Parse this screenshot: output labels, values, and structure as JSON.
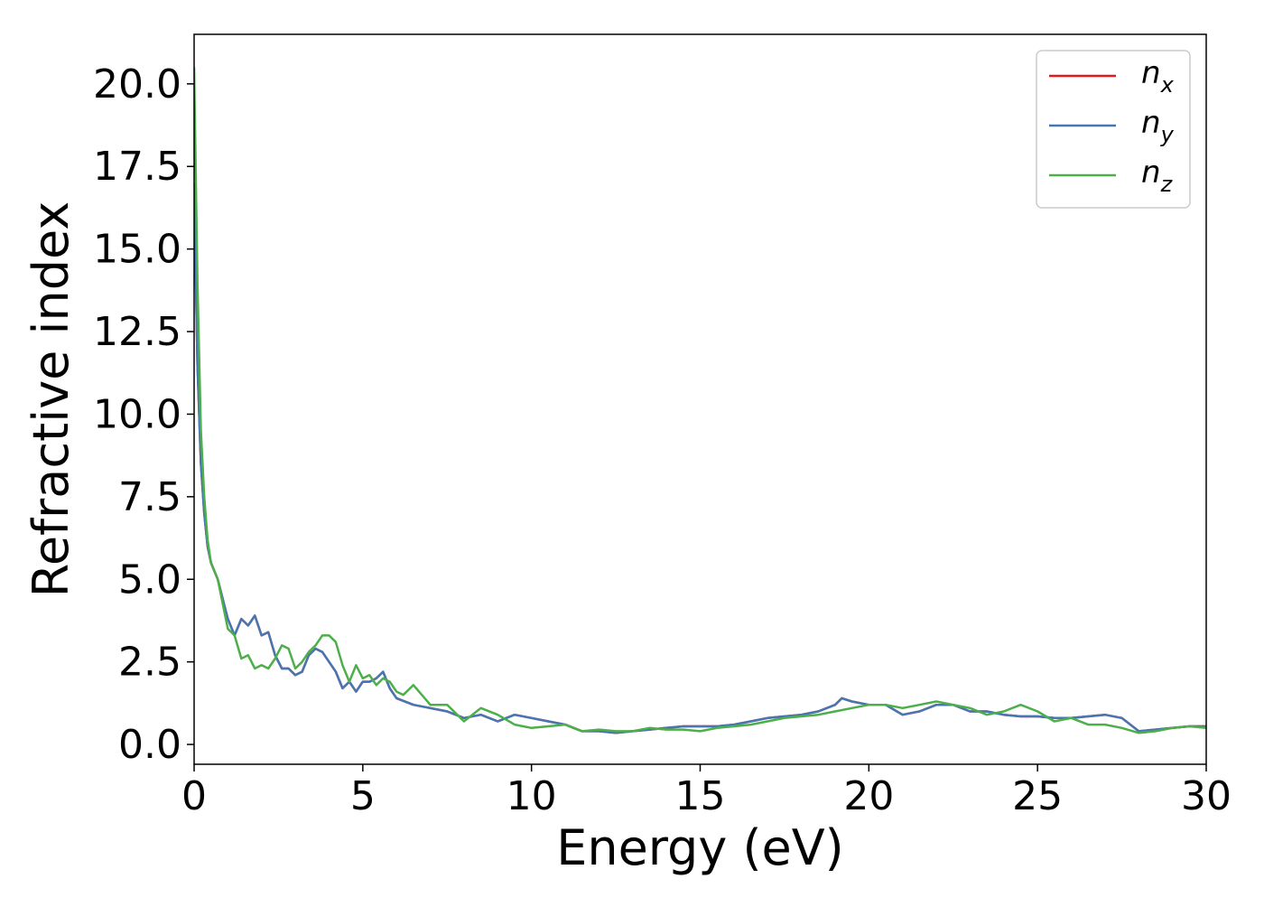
{
  "chart_data": {
    "type": "line",
    "title": "",
    "xlabel": "Energy (eV)",
    "ylabel": "Refractive index",
    "xlim": [
      0,
      30
    ],
    "ylim": [
      -0.6,
      21.5
    ],
    "xticks": [
      0,
      5,
      10,
      15,
      20,
      25,
      30
    ],
    "xtick_labels": [
      "0",
      "5",
      "10",
      "15",
      "20",
      "25",
      "30"
    ],
    "yticks": [
      0.0,
      2.5,
      5.0,
      7.5,
      10.0,
      12.5,
      15.0,
      17.5,
      20.0
    ],
    "ytick_labels": [
      "0.0",
      "2.5",
      "5.0",
      "7.5",
      "10.0",
      "12.5",
      "15.0",
      "17.5",
      "20.0"
    ],
    "grid": false,
    "legend_position": "top-right",
    "series": [
      {
        "name": "n",
        "subscript": "x",
        "color": "#e41a1c",
        "x": [
          0,
          0.1,
          0.2,
          0.3,
          0.4,
          0.5,
          0.7,
          0.9,
          1.0,
          1.2,
          1.4,
          1.6,
          1.8,
          2.0,
          2.2,
          2.4,
          2.6,
          2.8,
          3.0,
          3.2,
          3.4,
          3.6,
          3.8,
          4.0,
          4.2,
          4.4,
          4.6,
          4.8,
          5.0,
          5.2,
          5.4,
          5.6,
          5.8,
          6.0,
          6.5,
          7.0,
          7.5,
          8.0,
          8.5,
          9.0,
          9.5,
          10.0,
          10.5,
          11.0,
          11.5,
          12.0,
          12.5,
          13.0,
          13.5,
          14.0,
          14.5,
          15.0,
          15.5,
          16.0,
          16.5,
          17.0,
          17.5,
          18.0,
          18.5,
          19.0,
          19.2,
          19.5,
          20.0,
          20.5,
          21.0,
          21.5,
          22.0,
          22.5,
          23.0,
          23.5,
          24.0,
          24.5,
          25.0,
          25.5,
          26.0,
          26.5,
          27.0,
          27.5,
          28.0,
          28.5,
          29.0,
          29.5,
          30.0
        ],
        "y": [
          17.0,
          11.5,
          8.5,
          7.0,
          6.0,
          5.5,
          5.0,
          4.2,
          3.8,
          3.3,
          3.8,
          3.6,
          3.9,
          3.3,
          3.4,
          2.7,
          2.3,
          2.3,
          2.1,
          2.2,
          2.7,
          2.9,
          2.8,
          2.5,
          2.2,
          1.7,
          1.9,
          1.6,
          1.9,
          1.9,
          2.0,
          2.2,
          1.7,
          1.4,
          1.2,
          1.1,
          1.0,
          0.8,
          0.9,
          0.7,
          0.9,
          0.8,
          0.7,
          0.6,
          0.4,
          0.4,
          0.35,
          0.4,
          0.45,
          0.5,
          0.55,
          0.55,
          0.55,
          0.6,
          0.7,
          0.8,
          0.85,
          0.9,
          1.0,
          1.2,
          1.4,
          1.3,
          1.2,
          1.2,
          0.9,
          1.0,
          1.2,
          1.2,
          1.0,
          1.0,
          0.9,
          0.85,
          0.85,
          0.8,
          0.8,
          0.85,
          0.9,
          0.8,
          0.4,
          0.45,
          0.5,
          0.55,
          0.55
        ]
      },
      {
        "name": "n",
        "subscript": "y",
        "color": "#4477b3",
        "x": [
          0,
          0.1,
          0.2,
          0.3,
          0.4,
          0.5,
          0.7,
          0.9,
          1.0,
          1.2,
          1.4,
          1.6,
          1.8,
          2.0,
          2.2,
          2.4,
          2.6,
          2.8,
          3.0,
          3.2,
          3.4,
          3.6,
          3.8,
          4.0,
          4.2,
          4.4,
          4.6,
          4.8,
          5.0,
          5.2,
          5.4,
          5.6,
          5.8,
          6.0,
          6.5,
          7.0,
          7.5,
          8.0,
          8.5,
          9.0,
          9.5,
          10.0,
          10.5,
          11.0,
          11.5,
          12.0,
          12.5,
          13.0,
          13.5,
          14.0,
          14.5,
          15.0,
          15.5,
          16.0,
          16.5,
          17.0,
          17.5,
          18.0,
          18.5,
          19.0,
          19.2,
          19.5,
          20.0,
          20.5,
          21.0,
          21.5,
          22.0,
          22.5,
          23.0,
          23.5,
          24.0,
          24.5,
          25.0,
          25.5,
          26.0,
          26.5,
          27.0,
          27.5,
          28.0,
          28.5,
          29.0,
          29.5,
          30.0
        ],
        "y": [
          17.0,
          11.5,
          8.5,
          7.0,
          6.0,
          5.5,
          5.0,
          4.2,
          3.8,
          3.3,
          3.8,
          3.6,
          3.9,
          3.3,
          3.4,
          2.7,
          2.3,
          2.3,
          2.1,
          2.2,
          2.7,
          2.9,
          2.8,
          2.5,
          2.2,
          1.7,
          1.9,
          1.6,
          1.9,
          1.9,
          2.0,
          2.2,
          1.7,
          1.4,
          1.2,
          1.1,
          1.0,
          0.8,
          0.9,
          0.7,
          0.9,
          0.8,
          0.7,
          0.6,
          0.4,
          0.4,
          0.35,
          0.4,
          0.45,
          0.5,
          0.55,
          0.55,
          0.55,
          0.6,
          0.7,
          0.8,
          0.85,
          0.9,
          1.0,
          1.2,
          1.4,
          1.3,
          1.2,
          1.2,
          0.9,
          1.0,
          1.2,
          1.2,
          1.0,
          1.0,
          0.9,
          0.85,
          0.85,
          0.8,
          0.8,
          0.85,
          0.9,
          0.8,
          0.4,
          0.45,
          0.5,
          0.55,
          0.55
        ]
      },
      {
        "name": "n",
        "subscript": "z",
        "color": "#4daf4a",
        "x": [
          0,
          0.1,
          0.2,
          0.3,
          0.4,
          0.5,
          0.7,
          0.9,
          1.0,
          1.2,
          1.4,
          1.6,
          1.8,
          2.0,
          2.2,
          2.4,
          2.6,
          2.8,
          3.0,
          3.2,
          3.4,
          3.6,
          3.8,
          4.0,
          4.2,
          4.4,
          4.6,
          4.8,
          5.0,
          5.2,
          5.4,
          5.6,
          5.8,
          6.0,
          6.2,
          6.5,
          7.0,
          7.5,
          8.0,
          8.5,
          9.0,
          9.5,
          10.0,
          10.5,
          11.0,
          11.5,
          12.0,
          12.5,
          13.0,
          13.5,
          14.0,
          14.5,
          15.0,
          15.5,
          16.0,
          16.5,
          17.0,
          17.5,
          18.0,
          18.5,
          19.0,
          19.5,
          20.0,
          20.5,
          21.0,
          21.5,
          22.0,
          22.5,
          23.0,
          23.5,
          24.0,
          24.5,
          25.0,
          25.5,
          26.0,
          26.5,
          27.0,
          27.5,
          28.0,
          28.5,
          29.0,
          29.5,
          30.0
        ],
        "y": [
          20.5,
          14.0,
          9.5,
          7.5,
          6.2,
          5.5,
          5.0,
          4.0,
          3.5,
          3.3,
          2.6,
          2.7,
          2.3,
          2.4,
          2.3,
          2.6,
          3.0,
          2.9,
          2.3,
          2.5,
          2.8,
          3.0,
          3.3,
          3.3,
          3.1,
          2.4,
          1.9,
          2.4,
          2.0,
          2.1,
          1.8,
          2.0,
          1.9,
          1.6,
          1.5,
          1.8,
          1.2,
          1.2,
          0.7,
          1.1,
          0.9,
          0.6,
          0.5,
          0.55,
          0.6,
          0.4,
          0.45,
          0.4,
          0.4,
          0.5,
          0.45,
          0.45,
          0.4,
          0.5,
          0.55,
          0.6,
          0.7,
          0.8,
          0.85,
          0.9,
          1.0,
          1.1,
          1.2,
          1.2,
          1.1,
          1.2,
          1.3,
          1.2,
          1.1,
          0.9,
          1.0,
          1.2,
          1.0,
          0.7,
          0.8,
          0.6,
          0.6,
          0.5,
          0.35,
          0.4,
          0.5,
          0.55,
          0.5
        ]
      }
    ]
  }
}
